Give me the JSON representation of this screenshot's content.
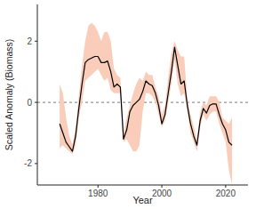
{
  "chart_data": {
    "type": "line",
    "x_label": "Year",
    "y_label": "Scaled Anomaly (Biomass)",
    "x": [
      1968,
      1969,
      1970,
      1971,
      1972,
      1973,
      1974,
      1975,
      1976,
      1977,
      1978,
      1979,
      1980,
      1981,
      1982,
      1983,
      1984,
      1985,
      1986,
      1987,
      1988,
      1989,
      1990,
      1991,
      1992,
      1993,
      1994,
      1995,
      1996,
      1997,
      1998,
      1999,
      2000,
      2001,
      2002,
      2003,
      2004,
      2005,
      2006,
      2007,
      2008,
      2009,
      2010,
      2011,
      2012,
      2013,
      2014,
      2015,
      2016,
      2017,
      2018,
      2019,
      2020,
      2021,
      2022
    ],
    "series": [
      {
        "type": "area",
        "color": "#f9cdb9",
        "lower": [
          -1.5,
          -1.4,
          -1.5,
          -1.6,
          -1.7,
          -1.4,
          -0.5,
          0.0,
          0.7,
          0.8,
          0.9,
          1.0,
          1.1,
          0.9,
          0.7,
          0.8,
          0.4,
          0.3,
          0.3,
          0.3,
          -1.3,
          -1.2,
          -1.4,
          -1.6,
          -1.6,
          -1.4,
          -0.3,
          0.3,
          0.3,
          0.2,
          0.0,
          -0.4,
          -0.8,
          -0.6,
          0.0,
          0.6,
          1.4,
          0.6,
          0.2,
          0.3,
          -0.3,
          -1.0,
          -1.3,
          -1.6,
          -0.8,
          -0.4,
          -0.6,
          -0.4,
          -0.3,
          -0.3,
          -0.7,
          -1.0,
          -1.3,
          -2.2,
          -2.7
        ],
        "upper": [
          0.6,
          0.3,
          -0.5,
          -1.1,
          -1.4,
          -0.8,
          0.2,
          1.2,
          2.0,
          2.5,
          2.6,
          2.5,
          2.3,
          2.0,
          2.3,
          2.3,
          2.0,
          1.1,
          0.9,
          0.8,
          -1.0,
          -0.5,
          -0.1,
          0.3,
          0.6,
          0.8,
          0.7,
          1.0,
          0.9,
          0.9,
          0.5,
          0.2,
          -0.4,
          -0.1,
          0.8,
          1.6,
          2.0,
          1.7,
          1.5,
          1.5,
          0.1,
          -0.4,
          -0.8,
          -1.2,
          -0.3,
          0.0,
          -0.1,
          0.2,
          0.2,
          0.2,
          0.0,
          -0.5,
          -0.6,
          -0.7,
          -0.5
        ]
      },
      {
        "type": "line",
        "color": "#000000",
        "values": [
          -0.7,
          -1.0,
          -1.3,
          -1.45,
          -1.6,
          -1.1,
          -0.2,
          0.6,
          1.3,
          1.4,
          1.45,
          1.5,
          1.5,
          1.3,
          1.3,
          1.35,
          1.0,
          0.5,
          0.6,
          0.5,
          -1.2,
          -0.9,
          -0.3,
          -0.1,
          0.0,
          0.1,
          0.35,
          0.7,
          0.6,
          0.55,
          0.3,
          -0.1,
          -0.7,
          -0.4,
          0.3,
          1.0,
          1.8,
          1.2,
          0.6,
          0.7,
          -0.1,
          -0.7,
          -1.1,
          -1.4,
          -0.6,
          -0.2,
          -0.35,
          -0.1,
          -0.05,
          -0.05,
          -0.4,
          -0.7,
          -0.9,
          -1.3,
          -1.4
        ]
      }
    ],
    "reference_y": 0,
    "xlim": [
      1961,
      2027
    ],
    "ylim": [
      -2.7,
      3.2
    ],
    "xticks": [
      1980,
      2000,
      2020
    ],
    "yticks": [
      -2,
      0,
      2
    ],
    "grid": false
  }
}
